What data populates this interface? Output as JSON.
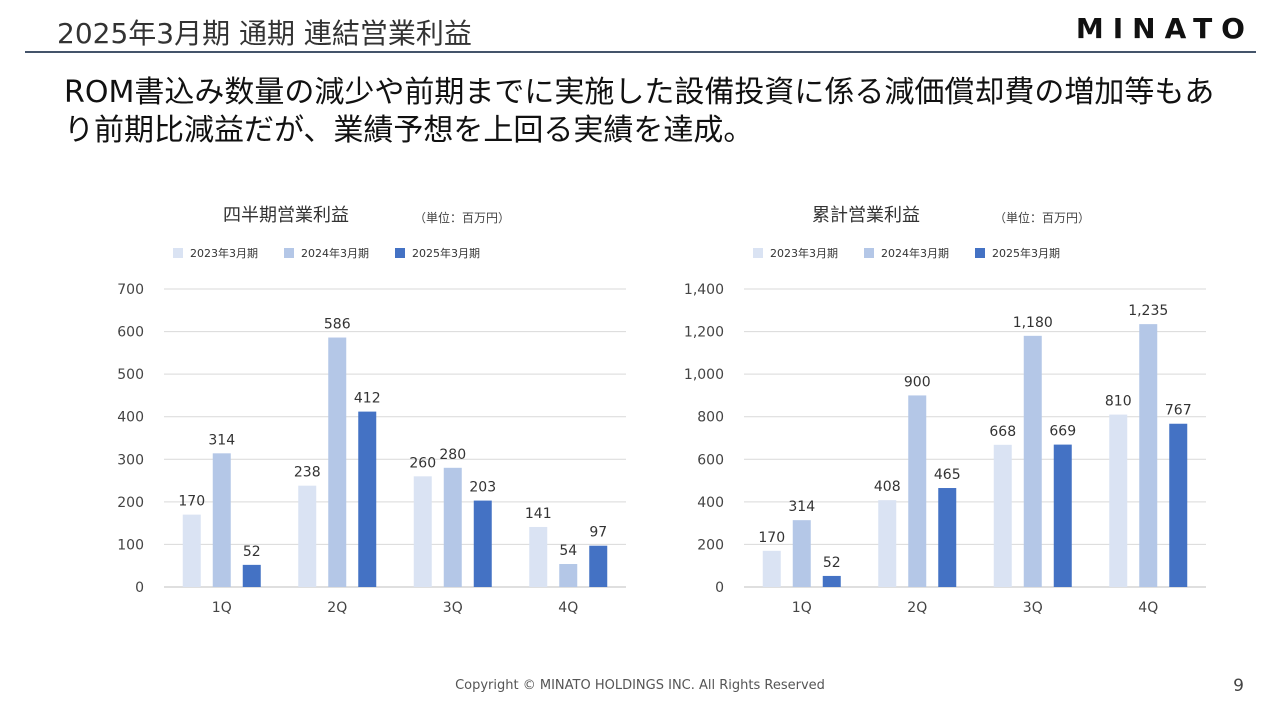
{
  "header": {
    "title": "2025年3月期 通期 連結営業利益",
    "logo": "MINATO"
  },
  "message": "ROM書込み数量の減少や前期までに実施した設備投資に係る減価償却費の増加等もあり前期比減益だが、業績予想を上回る実績を達成。",
  "footer": {
    "copyright": "Copyright © MINATO HOLDINGS INC. All Rights Reserved",
    "page_number": "9"
  },
  "colors": {
    "series_2023": "#dae3f3",
    "series_2024": "#b4c7e7",
    "series_2025": "#4472c4",
    "gridline": "#d9d9d9",
    "title_rule": "#44546a"
  },
  "chart_data": [
    {
      "type": "bar",
      "title": "四半期営業利益",
      "unit": "（単位：百万円）",
      "categories": [
        "1Q",
        "2Q",
        "3Q",
        "4Q"
      ],
      "series": [
        {
          "name": "2023年3月期",
          "values": [
            170,
            238,
            260,
            141
          ]
        },
        {
          "name": "2024年3月期",
          "values": [
            314,
            586,
            280,
            54
          ]
        },
        {
          "name": "2025年3月期",
          "values": [
            52,
            412,
            203,
            97
          ]
        }
      ],
      "ylim": [
        0,
        700
      ],
      "yticks": [
        "0",
        "100",
        "200",
        "300",
        "400",
        "500",
        "600",
        "700"
      ],
      "grid": true,
      "legend_position": "top-left"
    },
    {
      "type": "bar",
      "title": "累計営業利益",
      "unit": "（単位：百万円）",
      "categories": [
        "1Q",
        "2Q",
        "3Q",
        "4Q"
      ],
      "series": [
        {
          "name": "2023年3月期",
          "values": [
            170,
            408,
            668,
            810
          ]
        },
        {
          "name": "2024年3月期",
          "values": [
            314,
            900,
            1180,
            1235
          ]
        },
        {
          "name": "2025年3月期",
          "values": [
            52,
            465,
            669,
            767
          ]
        }
      ],
      "ylim": [
        0,
        1400
      ],
      "yticks": [
        "0",
        "200",
        "400",
        "600",
        "800",
        "1,000",
        "1,200",
        "1,400"
      ],
      "grid": true,
      "legend_position": "top-left"
    }
  ]
}
